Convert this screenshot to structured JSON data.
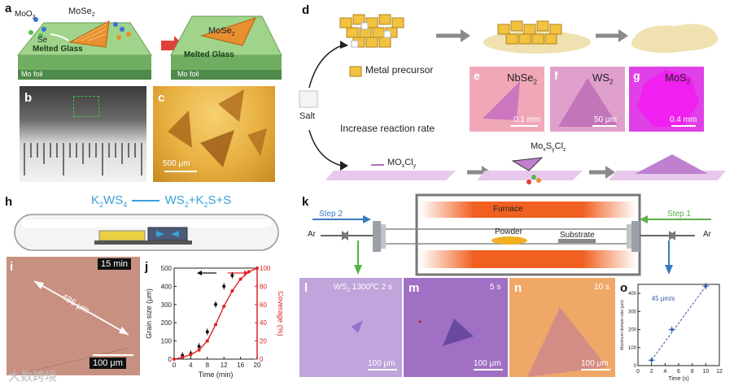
{
  "panel_a": {
    "letter": "a",
    "left_labels": {
      "moo3": "MoO",
      "moo3_sub": "3",
      "mose2": "MoSe",
      "mose2_sub": "2",
      "se": "Se",
      "glass": "Melted Glass",
      "foil": "Mo foil"
    },
    "right_labels": {
      "mose2": "MoSe",
      "mose2_sub": "2",
      "glass": "Melted Glass",
      "foil": "Mo foil"
    }
  },
  "panel_b": {
    "letter": "b"
  },
  "panel_c": {
    "letter": "c",
    "scale": "500 μm"
  },
  "panel_d": {
    "letter": "d",
    "metal_precursor": "Metal precursor",
    "salt": "Salt",
    "increase_rate": "Increase reaction rate",
    "moxcly": "MO",
    "moxcly_x": "x",
    "moxcly_cl": "Cl",
    "moxcly_y": "y",
    "mosycl": "Mo",
    "mosycl_x": "x",
    "mosycl_s": "S",
    "mosycl_y": "y",
    "mosycl_cl": "Cl",
    "mosycl_z": "z"
  },
  "panel_e": {
    "letter": "e",
    "material": "NbSe",
    "sub": "2",
    "scale": "0.1 mm"
  },
  "panel_f": {
    "letter": "f",
    "material": "WS",
    "sub": "2",
    "scale": "50 μm"
  },
  "panel_g": {
    "letter": "g",
    "material": "MoS",
    "sub": "2",
    "scale": "0.4 mm"
  },
  "panel_h": {
    "letter": "h",
    "eq_k2ws4": "K",
    "eq_k2ws4_a": "2",
    "eq_k2ws4_b": "WS",
    "eq_k2ws4_c": "4",
    "eq_ws2": "WS",
    "eq_ws2_sub": "2",
    "eq_plus1": "+K",
    "eq_k2s_sub": "2",
    "eq_s": "S+S"
  },
  "panel_i": {
    "letter": "i",
    "time": "15 min",
    "length": "486 μm",
    "scale": "100 μm"
  },
  "panel_j": {
    "letter": "j"
  },
  "panel_k": {
    "letter": "k",
    "step2": "Step 2",
    "step1": "Step 1",
    "ar_left": "Ar",
    "ar_right": "Ar",
    "furnace": "Furnace",
    "powder": "Powder",
    "substrate": "Substrate"
  },
  "panel_l": {
    "letter": "l",
    "title": "WS",
    "title_sub": "2",
    "title_rest": " 1300ºC 2 s",
    "scale": "100 μm"
  },
  "panel_m": {
    "letter": "m",
    "time": "5 s",
    "scale": "100 μm"
  },
  "panel_n": {
    "letter": "n",
    "time": "10 s",
    "scale": "100 μm"
  },
  "panel_o": {
    "letter": "o"
  },
  "watermark": "大数跨境",
  "chart_data": [
    {
      "type": "line",
      "panel": "j",
      "xlabel": "Time (min)",
      "ylabel": "Grain size (μm)",
      "y2label": "Coverage (%)",
      "xlim": [
        0,
        20
      ],
      "ylim": [
        0,
        500
      ],
      "y2lim": [
        0,
        100
      ],
      "xticks": [
        0,
        4,
        8,
        12,
        16,
        20
      ],
      "yticks": [
        0,
        100,
        200,
        300,
        400,
        500
      ],
      "y2ticks": [
        0,
        20,
        40,
        60,
        80,
        100
      ],
      "series": [
        {
          "axis": "left",
          "color": "#111111",
          "marker": "circle",
          "x": [
            2,
            4,
            6,
            8,
            10,
            12,
            14
          ],
          "y": [
            20,
            30,
            70,
            150,
            300,
            400,
            460
          ]
        },
        {
          "axis": "right",
          "color": "#e02020",
          "marker": "circle",
          "x": [
            0,
            2,
            4,
            6,
            8,
            10,
            12,
            14,
            16,
            18,
            20
          ],
          "y": [
            0,
            2,
            5,
            10,
            20,
            38,
            58,
            75,
            88,
            96,
            100
          ]
        }
      ]
    },
    {
      "type": "scatter",
      "panel": "o",
      "xlabel": "Time (s)",
      "ylabel": "Maximum domain size (μm)",
      "annotation": "45 μm/s",
      "xlim": [
        0,
        12
      ],
      "ylim": [
        0,
        450
      ],
      "xticks": [
        0,
        2,
        4,
        6,
        8,
        10,
        12
      ],
      "yticks": [
        0,
        100,
        200,
        300,
        400
      ],
      "x": [
        2,
        5,
        10
      ],
      "y": [
        30,
        200,
        440
      ]
    }
  ]
}
